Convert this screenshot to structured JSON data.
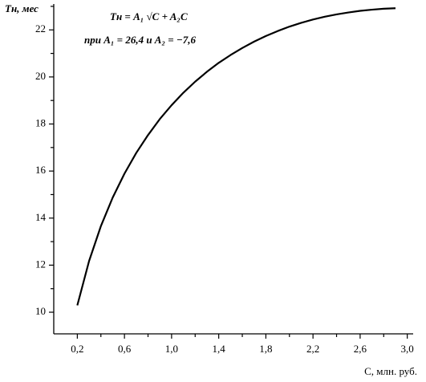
{
  "chart_data": {
    "type": "line",
    "y_label": "Tн, мес",
    "x_label": "C, млн. руб.",
    "annotations": [
      "Tн = A₁ √C + A₂C",
      "при A₁ = 26,4 и A₂ = −7,6"
    ],
    "x": [
      0.2,
      0.3,
      0.4,
      0.5,
      0.6,
      0.7,
      0.8,
      0.9,
      1.0,
      1.1,
      1.2,
      1.3,
      1.4,
      1.5,
      1.6,
      1.7,
      1.8,
      1.9,
      2.0,
      2.1,
      2.2,
      2.3,
      2.4,
      2.5,
      2.6,
      2.7,
      2.8,
      2.9
    ],
    "series": [
      {
        "color": "#000000",
        "values": [
          10.29,
          12.18,
          13.66,
          14.87,
          15.89,
          16.77,
          17.53,
          18.21,
          18.8,
          19.33,
          19.8,
          20.22,
          20.6,
          20.93,
          21.23,
          21.5,
          21.74,
          21.95,
          22.14,
          22.3,
          22.44,
          22.56,
          22.66,
          22.74,
          22.81,
          22.86,
          22.9,
          22.92
        ]
      }
    ],
    "xlim": [
      0,
      3.05
    ],
    "ylim": [
      9.08,
      23.1
    ],
    "xticks": [
      {
        "value": 0.2,
        "label": "0,2"
      },
      {
        "value": 0.6,
        "label": "0,6"
      },
      {
        "value": 1.0,
        "label": "1,0"
      },
      {
        "value": 1.4,
        "label": "1,4"
      },
      {
        "value": 1.8,
        "label": "1,8"
      },
      {
        "value": 2.2,
        "label": "2,2"
      },
      {
        "value": 2.6,
        "label": "2,6"
      },
      {
        "value": 3.0,
        "label": "3,0"
      }
    ],
    "xminorticks": [
      0.4,
      0.8,
      1.2,
      1.6,
      2.0,
      2.4,
      2.8
    ],
    "yticks": [
      10,
      12,
      14,
      16,
      18,
      20,
      22
    ],
    "yminorticks": [
      11,
      13,
      15,
      17,
      19,
      21,
      23
    ],
    "grid": false
  }
}
